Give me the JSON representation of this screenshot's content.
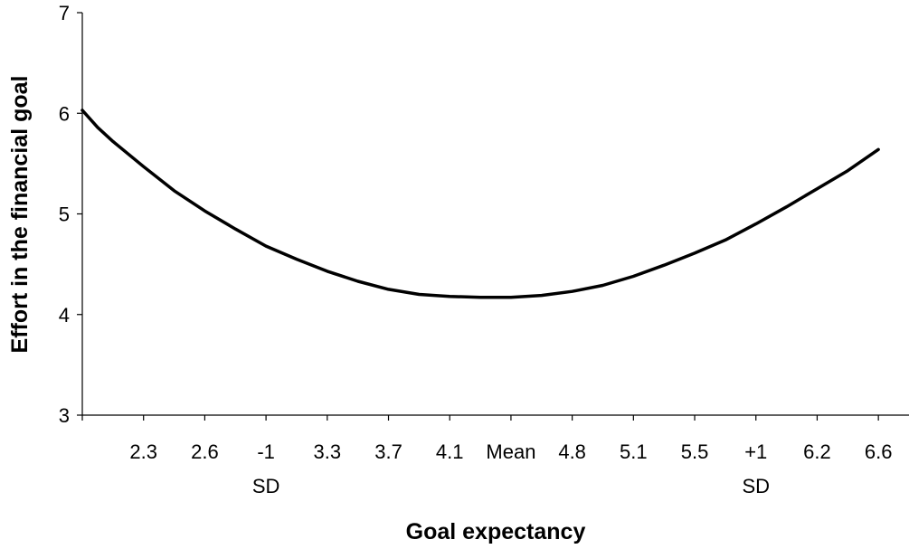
{
  "chart_data": {
    "type": "line",
    "title": "",
    "xlabel": "Goal expectancy",
    "ylabel": "Effort in the financial goal",
    "ylim": [
      3,
      7
    ],
    "yticks": [
      "3",
      "4",
      "5",
      "6",
      "7"
    ],
    "categories": [
      [
        "2.3"
      ],
      [
        "2.6"
      ],
      [
        "-1",
        "SD"
      ],
      [
        "3.3"
      ],
      [
        "3.7"
      ],
      [
        "4.1"
      ],
      [
        "Mean"
      ],
      [
        "4.8"
      ],
      [
        "5.1"
      ],
      [
        "5.5"
      ],
      [
        "+1",
        "SD"
      ],
      [
        "6.2"
      ],
      [
        "6.6"
      ]
    ],
    "series": [
      {
        "values": [
          [
            0.0,
            6.03
          ],
          [
            0.25,
            5.86
          ],
          [
            0.5,
            5.72
          ],
          [
            1.0,
            5.47
          ],
          [
            1.5,
            5.23
          ],
          [
            2.0,
            5.03
          ],
          [
            2.5,
            4.85
          ],
          [
            3.0,
            4.68
          ],
          [
            3.5,
            4.55
          ],
          [
            4.0,
            4.43
          ],
          [
            4.5,
            4.33
          ],
          [
            5.0,
            4.25
          ],
          [
            5.5,
            4.2
          ],
          [
            6.0,
            4.18
          ],
          [
            6.5,
            4.17
          ],
          [
            7.0,
            4.17
          ],
          [
            7.5,
            4.19
          ],
          [
            8.0,
            4.23
          ],
          [
            8.5,
            4.29
          ],
          [
            9.0,
            4.38
          ],
          [
            9.5,
            4.49
          ],
          [
            10.0,
            4.61
          ],
          [
            10.5,
            4.74
          ],
          [
            11.0,
            4.9
          ],
          [
            11.5,
            5.07
          ],
          [
            12.0,
            5.25
          ],
          [
            12.5,
            5.43
          ],
          [
            13.0,
            5.64
          ]
        ]
      }
    ],
    "line_color": "#000000",
    "grid": false,
    "legend": "none"
  }
}
